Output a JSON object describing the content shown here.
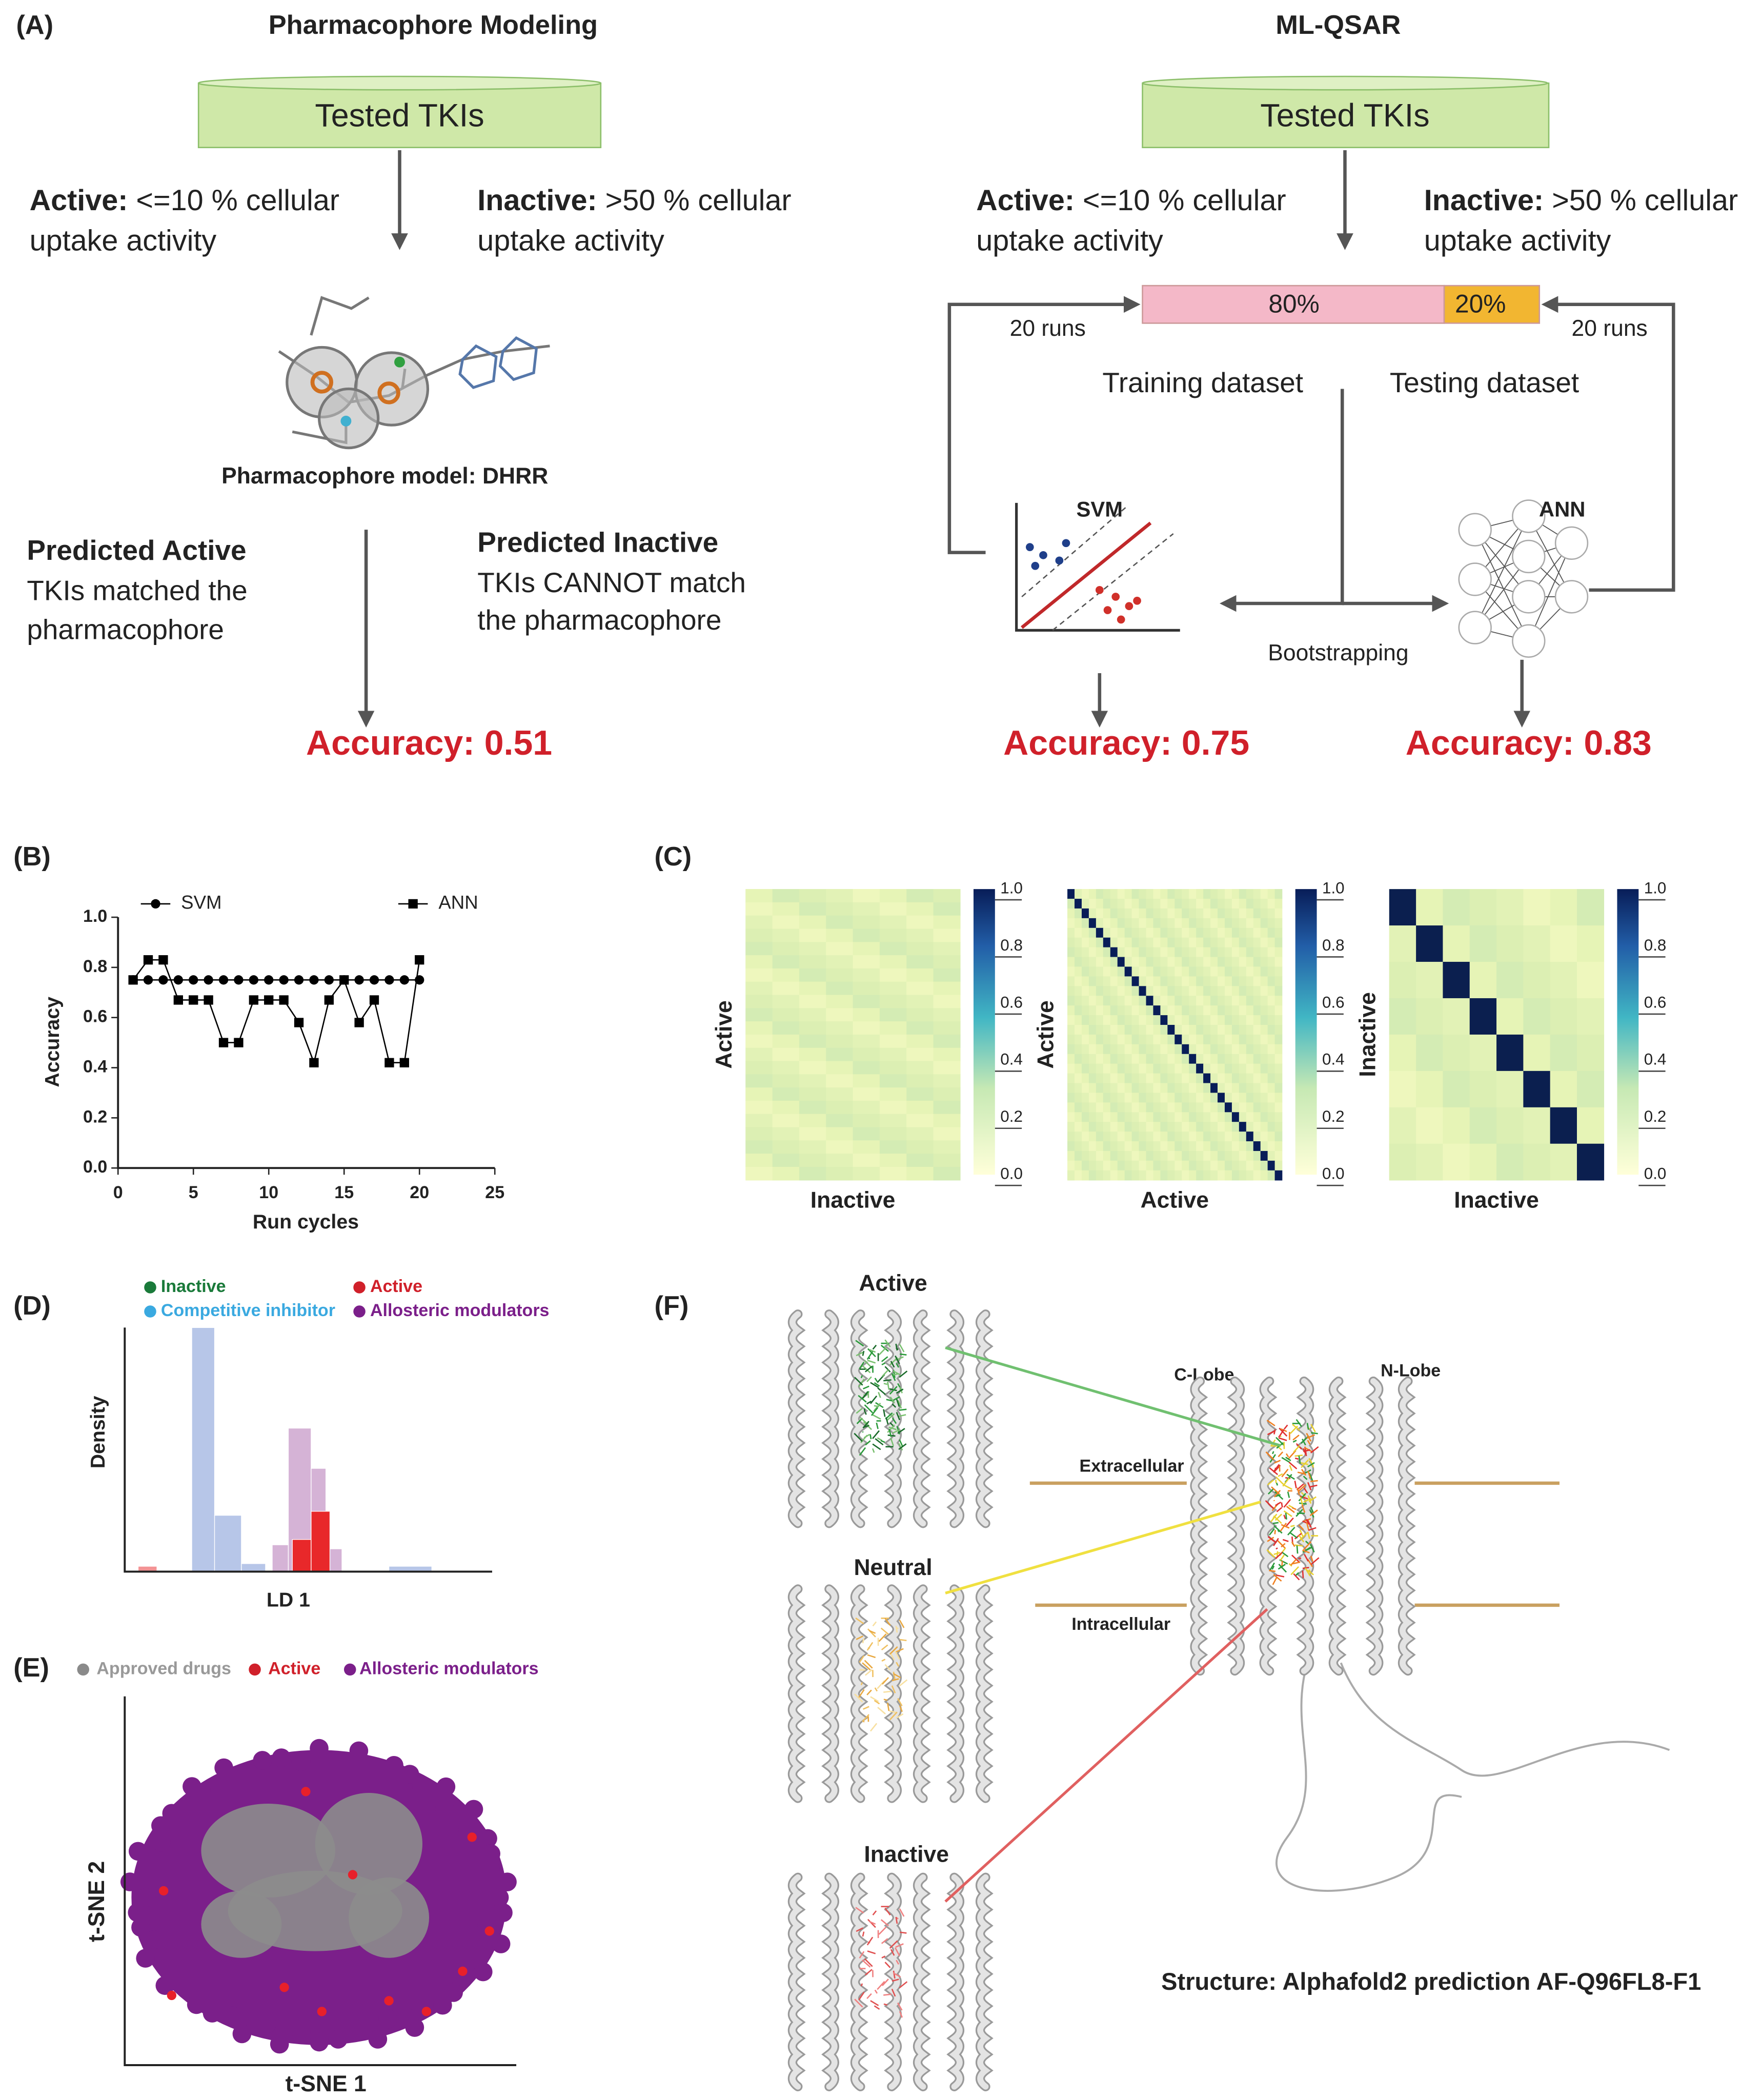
{
  "figure": {
    "panel_a": {
      "label": "(A)",
      "pharmacophore": {
        "title": "Pharmacophore Modeling",
        "input": "Tested TKIs",
        "active_label": "Active:",
        "active_lines": [
          "<=10 % cellular",
          "uptake activity"
        ],
        "inactive_label": "Inactive:",
        "inactive_lines": [
          ">50 % cellular",
          "uptake activity"
        ],
        "model": "Pharmacophore model: DHRR",
        "predicted_active_label": "Predicted Active",
        "predicted_active_lines": [
          "TKIs matched the",
          "pharmacophore"
        ],
        "predicted_inactive_label": "Predicted Inactive",
        "predicted_inactive_lines": [
          "TKIs CANNOT match",
          "the pharmacophore"
        ],
        "accuracy": "Accuracy: 0.51"
      },
      "ml_qsar": {
        "title": "ML-QSAR",
        "input": "Tested TKIs",
        "active_label": "Active:",
        "active_lines": [
          "<=10 % cellular",
          "uptake activity"
        ],
        "inactive_label": "Inactive:",
        "inactive_lines": [
          ">50 % cellular",
          "uptake activity"
        ],
        "training_share": "80%",
        "testing_share": "20%",
        "runs": "20 runs",
        "training": "Training dataset",
        "testing": "Testing dataset",
        "svm": "SVM",
        "ann": "ANN",
        "bootstrapping": "Bootstrapping",
        "svm_accuracy": "Accuracy: 0.75",
        "ann_accuracy": "Accuracy: 0.83"
      }
    },
    "panel_c": {
      "label": "(C)",
      "heatmaps": [
        {
          "ylabel": "Active",
          "xlabel": "Inactive"
        },
        {
          "ylabel": "Active",
          "xlabel": "Active"
        },
        {
          "ylabel": "Inactive",
          "xlabel": "Inactive"
        }
      ],
      "colorbar_lim": [
        0,
        1
      ],
      "colorbar_ticks": [
        {
          "value": 0,
          "label": "0.0"
        },
        {
          "value": 0.2,
          "label": "0.2"
        },
        {
          "value": 0.4,
          "label": "0.4"
        },
        {
          "value": 0.6,
          "label": "0.6"
        },
        {
          "value": 0.8,
          "label": "0.8"
        },
        {
          "value": 1,
          "label": "1.0"
        }
      ]
    },
    "panel_d": {
      "label": "(D)",
      "legend": [
        "Inactive",
        "Active",
        "Competitive inhibitor",
        "Allosteric modulators"
      ],
      "ylabel": "Density",
      "xlabel": "LD 1"
    },
    "panel_e": {
      "label": "(E)",
      "legend": [
        "Approved drugs",
        "Active",
        "Allosteric modulators"
      ],
      "ylabel": "t-SNE 2",
      "xlabel": "t-SNE 1"
    },
    "panel_f": {
      "label": "(F)",
      "states": [
        "Active",
        "Neutral",
        "Inactive"
      ],
      "c_lobe": "C-Lobe",
      "n_lobe": "N-Lobe",
      "extracellular": "Extracellular",
      "intracellular": "Intracellular",
      "caption": "Structure: Alphafold2 prediction AF-Q96FL8-F1"
    }
  },
  "chart_data": {
    "type": "line",
    "label": "(B)",
    "x": [
      1,
      2,
      3,
      4,
      5,
      6,
      7,
      8,
      9,
      10,
      11,
      12,
      13,
      14,
      15,
      16,
      17,
      18,
      19,
      20
    ],
    "series": [
      {
        "name": "SVM",
        "color": "#000000",
        "marker": "circle",
        "values": [
          0.75,
          0.75,
          0.75,
          0.75,
          0.75,
          0.75,
          0.75,
          0.75,
          0.75,
          0.75,
          0.75,
          0.75,
          0.75,
          0.75,
          0.75,
          0.75,
          0.75,
          0.75,
          0.75,
          0.75
        ]
      },
      {
        "name": "ANN",
        "color": "#000000",
        "marker": "square",
        "values": [
          0.75,
          0.83,
          0.83,
          0.67,
          0.67,
          0.67,
          0.5,
          0.5,
          0.67,
          0.67,
          0.67,
          0.58,
          0.42,
          0.67,
          0.75,
          0.58,
          0.67,
          0.42,
          0.42,
          0.83
        ]
      }
    ],
    "xlim": [
      0,
      25
    ],
    "xticks": [
      0,
      5,
      10,
      15,
      20,
      25
    ],
    "ylim": [
      0,
      1
    ],
    "yticks": [
      {
        "value": 0,
        "label": "0.0"
      },
      {
        "value": 0.2,
        "label": "0.2"
      },
      {
        "value": 0.4,
        "label": "0.4"
      },
      {
        "value": 0.6,
        "label": "0.6"
      },
      {
        "value": 0.8,
        "label": "0.8"
      },
      {
        "value": 1,
        "label": "1.0"
      }
    ],
    "xlabel": "Run cycles",
    "ylabel": "Accuracy"
  }
}
